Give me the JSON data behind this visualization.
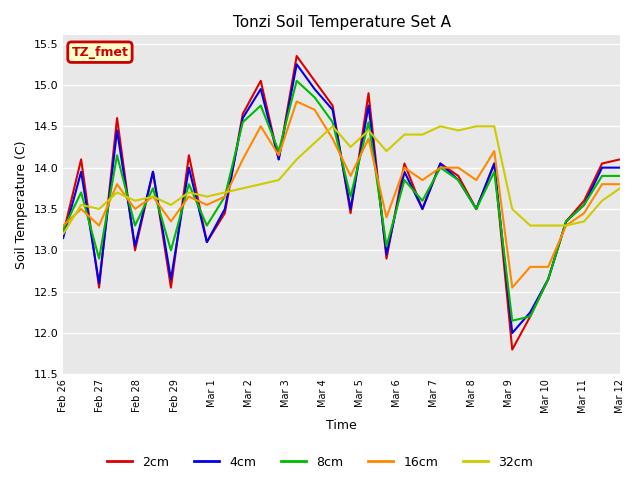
{
  "title": "Tonzi Soil Temperature Set A",
  "xlabel": "Time",
  "ylabel": "Soil Temperature (C)",
  "ylim": [
    11.5,
    15.6
  ],
  "xlim": [
    0,
    15
  ],
  "background_color": "#e8e8e8",
  "annotation_text": "TZ_fmet",
  "annotation_bg": "#ffffcc",
  "annotation_border": "#cc0000",
  "series": {
    "2cm": {
      "color": "#dd0000",
      "lw": 1.5
    },
    "4cm": {
      "color": "#0000ee",
      "lw": 1.5
    },
    "8cm": {
      "color": "#00bb00",
      "lw": 1.5
    },
    "16cm": {
      "color": "#ff8800",
      "lw": 1.5
    },
    "32cm": {
      "color": "#cccc00",
      "lw": 1.5
    }
  },
  "x_tick_positions": [
    0,
    1,
    2,
    3,
    4,
    5,
    6,
    7,
    8,
    9,
    10,
    11,
    12,
    13,
    14,
    15
  ],
  "x_tick_labels": [
    "Feb 26",
    "Feb 27",
    "Feb 28",
    "Feb 29",
    "Mar 1",
    "Mar 2",
    "Mar 3",
    "Mar 4",
    "Mar 5",
    "Mar 6",
    "Mar 7",
    "Mar 8",
    "Mar 9",
    "Mar 10",
    "Mar 11",
    "Mar 12"
  ],
  "y_ticks": [
    11.5,
    12.0,
    12.5,
    13.0,
    13.5,
    14.0,
    14.5,
    15.0,
    15.5
  ],
  "data_2cm": [
    13.2,
    14.1,
    12.55,
    14.6,
    13.0,
    13.95,
    12.55,
    14.15,
    13.1,
    13.45,
    14.65,
    15.05,
    14.1,
    15.35,
    15.05,
    14.75,
    13.45,
    14.9,
    12.9,
    14.05,
    13.5,
    14.05,
    13.9,
    13.5,
    14.05,
    11.8,
    12.2,
    12.65,
    13.35,
    13.6,
    14.05,
    14.1
  ],
  "data_4cm": [
    13.15,
    13.95,
    12.6,
    14.45,
    13.05,
    13.95,
    12.65,
    14.0,
    13.1,
    13.5,
    14.6,
    14.95,
    14.1,
    15.25,
    14.95,
    14.7,
    13.5,
    14.75,
    12.95,
    13.95,
    13.5,
    14.05,
    13.85,
    13.5,
    14.05,
    12.0,
    12.25,
    12.65,
    13.35,
    13.55,
    14.0,
    14.0
  ],
  "data_8cm": [
    13.25,
    13.7,
    12.9,
    14.15,
    13.3,
    13.75,
    13.0,
    13.8,
    13.3,
    13.65,
    14.55,
    14.75,
    14.2,
    15.05,
    14.85,
    14.55,
    13.65,
    14.55,
    13.05,
    13.85,
    13.6,
    14.0,
    13.85,
    13.5,
    13.95,
    12.15,
    12.2,
    12.65,
    13.35,
    13.55,
    13.9,
    13.9
  ],
  "data_16cm": [
    13.3,
    13.5,
    13.3,
    13.8,
    13.5,
    13.65,
    13.35,
    13.65,
    13.55,
    13.65,
    14.1,
    14.5,
    14.15,
    14.8,
    14.7,
    14.35,
    13.9,
    14.35,
    13.4,
    14.0,
    13.85,
    14.0,
    14.0,
    13.85,
    14.2,
    12.55,
    12.8,
    12.8,
    13.3,
    13.45,
    13.8,
    13.8
  ],
  "data_32cm": [
    13.2,
    13.55,
    13.5,
    13.7,
    13.6,
    13.65,
    13.55,
    13.7,
    13.65,
    13.7,
    13.75,
    13.8,
    13.85,
    14.1,
    14.3,
    14.5,
    14.25,
    14.45,
    14.2,
    14.4,
    14.4,
    14.5,
    14.45,
    14.5,
    14.5,
    13.5,
    13.3,
    13.3,
    13.3,
    13.35,
    13.6,
    13.75
  ]
}
